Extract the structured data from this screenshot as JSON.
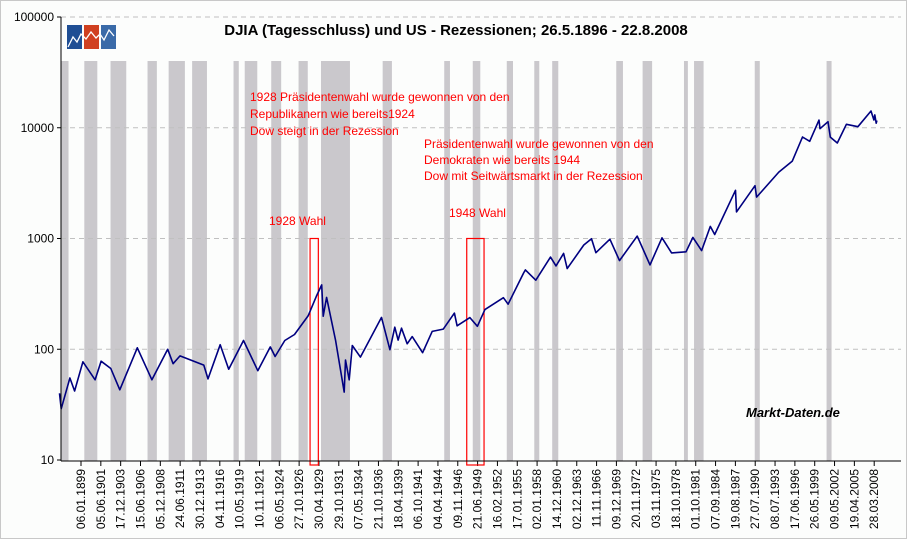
{
  "chart_data": {
    "type": "line",
    "title": "DJIA (Tagesschluss) und US - Rezessionen; 26.5.1896 - 22.8.2008",
    "watermark": "Markt-Daten.de",
    "y_scale": "log",
    "ylim": [
      10,
      100000
    ],
    "y_ticks": [
      "100000",
      "10000",
      "1000",
      "100",
      "10"
    ],
    "grid": "horizontal dashed",
    "x_ticks": [
      "06.01.1899",
      "05.06.1901",
      "17.12.1903",
      "15.06.1906",
      "05.12.1908",
      "24.06.1911",
      "30.12.1913",
      "04.11.1916",
      "10.05.1919",
      "10.11.1921",
      "06.05.1924",
      "27.10.1926",
      "30.04.1929",
      "29.10.1931",
      "07.05.1934",
      "21.10.1936",
      "18.04.1939",
      "06.10.1941",
      "04.04.1944",
      "09.11.1946",
      "21.06.1949",
      "16.02.1952",
      "17.01.1955",
      "02.01.1958",
      "14.12.1960",
      "02.12.1963",
      "11.11.1966",
      "09.12.1969",
      "20.11.1972",
      "03.11.1975",
      "18.10.1978",
      "01.10.1981",
      "07.09.1984",
      "19.08.1987",
      "27.07.1990",
      "08.07.1993",
      "17.06.1996",
      "26.05.1999",
      "09.05.2002",
      "19.04.2005",
      "28.03.2008"
    ],
    "colors": {
      "line": "#000080",
      "recession": "#cac8cc",
      "annotation": "#ff0000",
      "grid": "#c0c0c0"
    },
    "series": [
      {
        "points": [
          [
            "26.05.1896",
            40
          ],
          [
            "08.08.1896",
            29
          ],
          [
            "01.09.1897",
            55
          ],
          [
            "25.03.1898",
            42
          ],
          [
            "01.04.1899",
            77
          ],
          [
            "24.09.1900",
            53
          ],
          [
            "17.06.1901",
            78
          ],
          [
            "15.09.1902",
            67
          ],
          [
            "09.11.1903",
            43
          ],
          [
            "19.01.1906",
            103
          ],
          [
            "15.11.1907",
            53
          ],
          [
            "19.11.1909",
            100
          ],
          [
            "26.07.1910",
            74
          ],
          [
            "19.06.1911",
            87
          ],
          [
            "15.07.1914",
            72
          ],
          [
            "24.02.1915",
            54
          ],
          [
            "21.11.1916",
            110
          ],
          [
            "19.12.1917",
            66
          ],
          [
            "03.11.1919",
            120
          ],
          [
            "24.08.1921",
            64
          ],
          [
            "20.03.1923",
            105
          ],
          [
            "27.10.1923",
            86
          ],
          [
            "15.01.1925",
            120
          ],
          [
            "30.03.1926",
            136
          ],
          [
            "15.12.1927",
            200
          ],
          [
            "31.12.1928",
            300
          ],
          [
            "03.09.1929",
            381
          ],
          [
            "13.11.1929",
            199
          ],
          [
            "17.04.1930",
            294
          ],
          [
            "02.06.1931",
            120
          ],
          [
            "08.07.1932",
            41
          ],
          [
            "07.09.1932",
            80
          ],
          [
            "27.02.1933",
            53
          ],
          [
            "18.07.1933",
            108
          ],
          [
            "26.07.1934",
            85
          ],
          [
            "10.03.1937",
            194
          ],
          [
            "31.03.1938",
            99
          ],
          [
            "12.11.1938",
            158
          ],
          [
            "08.04.1939",
            121
          ],
          [
            "12.09.1939",
            155
          ],
          [
            "28.05.1940",
            112
          ],
          [
            "10.01.1941",
            130
          ],
          [
            "28.04.1942",
            93
          ],
          [
            "14.07.1943",
            145
          ],
          [
            "16.12.1944",
            152
          ],
          [
            "29.05.1946",
            212
          ],
          [
            "09.10.1946",
            163
          ],
          [
            "15.06.1948",
            193
          ],
          [
            "13.06.1949",
            161
          ],
          [
            "12.06.1950",
            228
          ],
          [
            "30.12.1952",
            292
          ],
          [
            "14.09.1953",
            255
          ],
          [
            "30.12.1955",
            488
          ],
          [
            "06.04.1956",
            521
          ],
          [
            "22.10.1957",
            420
          ],
          [
            "31.12.1959",
            679
          ],
          [
            "25.10.1960",
            566
          ],
          [
            "13.12.1961",
            734
          ],
          [
            "26.06.1962",
            535
          ],
          [
            "18.12.1964",
            874
          ],
          [
            "09.02.1966",
            995
          ],
          [
            "07.10.1966",
            744
          ],
          [
            "03.12.1968",
            985
          ],
          [
            "26.05.1970",
            631
          ],
          [
            "11.01.1973",
            1051
          ],
          [
            "06.12.1974",
            577
          ],
          [
            "21.09.1976",
            1014
          ],
          [
            "28.02.1978",
            742
          ],
          [
            "21.04.1980",
            759
          ],
          [
            "27.04.1981",
            1024
          ],
          [
            "12.08.1982",
            777
          ],
          [
            "29.11.1983",
            1287
          ],
          [
            "24.07.1984",
            1086
          ],
          [
            "25.08.1987",
            2722
          ],
          [
            "19.10.1987",
            1739
          ],
          [
            "16.07.1990",
            2999
          ],
          [
            "11.10.1990",
            2365
          ],
          [
            "31.01.1994",
            3978
          ],
          [
            "31.01.1996",
            5000
          ],
          [
            "06.08.1997",
            8259
          ],
          [
            "31.08.1998",
            7539
          ],
          [
            "14.01.2000",
            11723
          ],
          [
            "07.03.2000",
            9796
          ],
          [
            "21.05.2001",
            11337
          ],
          [
            "21.09.2001",
            8235
          ],
          [
            "09.10.2002",
            7286
          ],
          [
            "11.02.2004",
            10737
          ],
          [
            "25.10.2005",
            10215
          ],
          [
            "09.10.2007",
            14165
          ],
          [
            "10.03.2008",
            11740
          ],
          [
            "02.05.2008",
            13058
          ],
          [
            "15.07.2008",
            11000
          ],
          [
            "22.08.2008",
            11628
          ]
        ]
      }
    ],
    "recessions": [
      [
        "01.12.1895",
        "30.06.1897"
      ],
      [
        "01.06.1899",
        "31.12.1900"
      ],
      [
        "01.09.1902",
        "31.08.1904"
      ],
      [
        "01.05.1907",
        "30.06.1908"
      ],
      [
        "01.01.1910",
        "31.01.1912"
      ],
      [
        "01.01.1913",
        "31.12.1914"
      ],
      [
        "01.08.1918",
        "31.03.1919"
      ],
      [
        "01.01.1920",
        "31.07.1921"
      ],
      [
        "01.05.1923",
        "31.07.1924"
      ],
      [
        "01.10.1926",
        "30.11.1927"
      ],
      [
        "01.08.1929",
        "31.03.1933"
      ],
      [
        "01.05.1937",
        "30.06.1938"
      ],
      [
        "01.02.1945",
        "31.10.1945"
      ],
      [
        "01.11.1948",
        "31.10.1949"
      ],
      [
        "01.07.1953",
        "31.05.1954"
      ],
      [
        "01.08.1957",
        "30.04.1958"
      ],
      [
        "01.04.1960",
        "28.02.1961"
      ],
      [
        "01.12.1969",
        "30.11.1970"
      ],
      [
        "01.11.1973",
        "31.03.1975"
      ],
      [
        "01.01.1980",
        "31.07.1980"
      ],
      [
        "01.07.1981",
        "30.11.1982"
      ],
      [
        "01.07.1990",
        "31.03.1991"
      ],
      [
        "01.03.2001",
        "30.11.2001"
      ]
    ],
    "annotations": {
      "box_1928": {
        "label": "1928 Wahl",
        "from": "15.03.1928",
        "to": "01.04.1929",
        "y_top": 1000
      },
      "box_1948": {
        "label": "1948 Wahl",
        "from": "15.01.1948",
        "to": "01.05.1950",
        "y_top": 1000
      },
      "text_1928": [
        "1928 Präsidentenwahl wurde gewonnen von den",
        "Republikanern wie bereits1924",
        "Dow steigt in der Rezession"
      ],
      "text_1948": [
        "Präsidentenwahl wurde gewonnen von den",
        "Demokraten wie bereits 1944",
        "Dow mit Seitwärtsmarkt in der Rezession"
      ]
    }
  }
}
